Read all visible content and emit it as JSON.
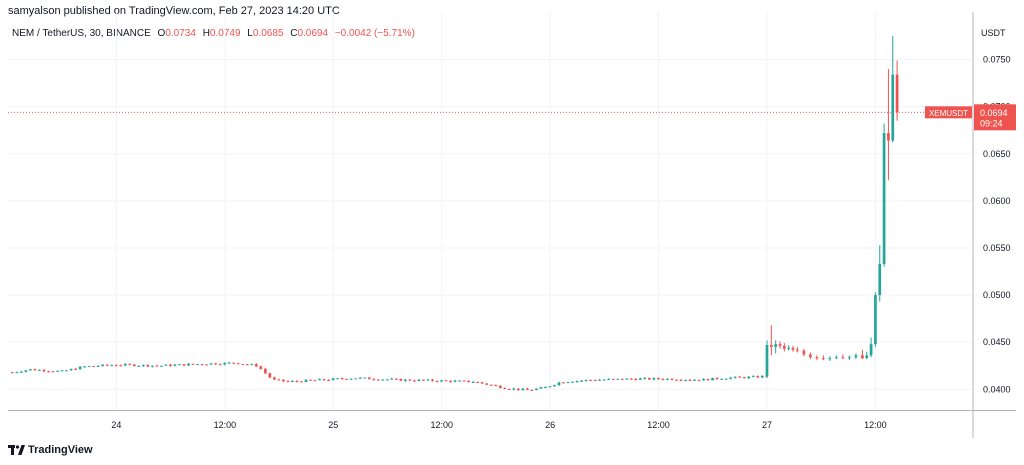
{
  "header": {
    "published_text": "samyalson published on TradingView.com, Feb 27, 2023 14:20 UTC"
  },
  "legend": {
    "symbol": "NEM / TetherUS, 30, BINANCE",
    "o_label": "O",
    "o_value": "0.0734",
    "h_label": "H",
    "h_value": "0.0749",
    "l_label": "L",
    "l_value": "0.0685",
    "c_label": "C",
    "c_value": "0.0694",
    "change": "−0.0042 (−5.71%)"
  },
  "price_axis": {
    "unit": "USDT"
  },
  "price_tag": {
    "symbol": "XEMUSDT",
    "price": "0.0694",
    "countdown": "09:24"
  },
  "footer": {
    "brand": "TradingView"
  },
  "colors": {
    "up": "#26a69a",
    "down": "#ef5350",
    "grid": "#f0f3fa",
    "axis_text": "#131722",
    "tag_bg": "#ef5350"
  },
  "chart_data": {
    "type": "candlestick",
    "title": "NEM / TetherUS, 30, BINANCE",
    "ylabel": "USDT",
    "ylim": [
      0.0378,
      0.0792
    ],
    "xlim": [
      23.5,
      27.95
    ],
    "grid": true,
    "x_ticks": [
      {
        "label": "24",
        "value": 24.0
      },
      {
        "label": "12:00",
        "value": 24.5
      },
      {
        "label": "25",
        "value": 25.0
      },
      {
        "label": "12:00",
        "value": 25.5
      },
      {
        "label": "26",
        "value": 26.0
      },
      {
        "label": "12:00",
        "value": 26.5
      },
      {
        "label": "27",
        "value": 27.0
      },
      {
        "label": "12:00",
        "value": 27.5
      }
    ],
    "y_ticks": [
      {
        "label": "0.0750",
        "value": 0.075
      },
      {
        "label": "0.0700",
        "value": 0.07
      },
      {
        "label": "0.0650",
        "value": 0.065
      },
      {
        "label": "0.0600",
        "value": 0.06
      },
      {
        "label": "0.0550",
        "value": 0.055
      },
      {
        "label": "0.0500",
        "value": 0.05
      },
      {
        "label": "0.0450",
        "value": 0.045
      },
      {
        "label": "0.0400",
        "value": 0.04
      }
    ],
    "last_price": 0.0694,
    "anchor_closes": [
      [
        23.52,
        0.0418
      ],
      [
        23.6,
        0.0421
      ],
      [
        23.75,
        0.0419
      ],
      [
        23.85,
        0.0424
      ],
      [
        24.0,
        0.0426
      ],
      [
        24.2,
        0.0425
      ],
      [
        24.4,
        0.0427
      ],
      [
        24.55,
        0.0428
      ],
      [
        24.65,
        0.0425
      ],
      [
        24.72,
        0.041
      ],
      [
        24.8,
        0.0408
      ],
      [
        24.95,
        0.041
      ],
      [
        25.1,
        0.0412
      ],
      [
        25.3,
        0.041
      ],
      [
        25.5,
        0.0409
      ],
      [
        25.65,
        0.0408
      ],
      [
        25.8,
        0.0401
      ],
      [
        25.9,
        0.0399
      ],
      [
        25.98,
        0.0402
      ],
      [
        26.05,
        0.0408
      ],
      [
        26.2,
        0.041
      ],
      [
        26.4,
        0.0411
      ],
      [
        26.55,
        0.0411
      ],
      [
        26.7,
        0.041
      ],
      [
        26.8,
        0.0412
      ],
      [
        26.95,
        0.0413
      ],
      [
        26.99,
        0.0414
      ]
    ],
    "candles": [
      {
        "t": 27.0,
        "o": 0.0414,
        "h": 0.0452,
        "l": 0.0412,
        "c": 0.0447
      },
      {
        "t": 27.02,
        "o": 0.0447,
        "h": 0.0468,
        "l": 0.0436,
        "c": 0.0445
      },
      {
        "t": 27.04,
        "o": 0.0445,
        "h": 0.0452,
        "l": 0.0438,
        "c": 0.0448
      },
      {
        "t": 27.06,
        "o": 0.0448,
        "h": 0.0451,
        "l": 0.0443,
        "c": 0.0446
      },
      {
        "t": 27.08,
        "o": 0.0446,
        "h": 0.0449,
        "l": 0.044,
        "c": 0.0443
      },
      {
        "t": 27.1,
        "o": 0.0443,
        "h": 0.0447,
        "l": 0.0441,
        "c": 0.0444
      },
      {
        "t": 27.12,
        "o": 0.0444,
        "h": 0.0446,
        "l": 0.044,
        "c": 0.0442
      },
      {
        "t": 27.14,
        "o": 0.0442,
        "h": 0.0445,
        "l": 0.0439,
        "c": 0.0441
      },
      {
        "t": 27.17,
        "o": 0.0441,
        "h": 0.0443,
        "l": 0.0435,
        "c": 0.0437
      },
      {
        "t": 27.2,
        "o": 0.0437,
        "h": 0.0439,
        "l": 0.0432,
        "c": 0.0434
      },
      {
        "t": 27.23,
        "o": 0.0434,
        "h": 0.0436,
        "l": 0.0431,
        "c": 0.0433
      },
      {
        "t": 27.26,
        "o": 0.0433,
        "h": 0.0436,
        "l": 0.0431,
        "c": 0.0432
      },
      {
        "t": 27.29,
        "o": 0.0432,
        "h": 0.0435,
        "l": 0.043,
        "c": 0.0433
      },
      {
        "t": 27.32,
        "o": 0.0433,
        "h": 0.0436,
        "l": 0.0432,
        "c": 0.0434
      },
      {
        "t": 27.35,
        "o": 0.0434,
        "h": 0.0437,
        "l": 0.0432,
        "c": 0.0433
      },
      {
        "t": 27.38,
        "o": 0.0433,
        "h": 0.0436,
        "l": 0.0431,
        "c": 0.0434
      },
      {
        "t": 27.41,
        "o": 0.0434,
        "h": 0.0438,
        "l": 0.0432,
        "c": 0.0436
      },
      {
        "t": 27.44,
        "o": 0.0436,
        "h": 0.0442,
        "l": 0.0432,
        "c": 0.0433
      },
      {
        "t": 27.46,
        "o": 0.0433,
        "h": 0.044,
        "l": 0.0432,
        "c": 0.0436
      },
      {
        "t": 27.48,
        "o": 0.0436,
        "h": 0.0455,
        "l": 0.0434,
        "c": 0.0448
      },
      {
        "t": 27.5,
        "o": 0.0448,
        "h": 0.0503,
        "l": 0.0445,
        "c": 0.05
      },
      {
        "t": 27.52,
        "o": 0.05,
        "h": 0.0553,
        "l": 0.0493,
        "c": 0.0533
      },
      {
        "t": 27.54,
        "o": 0.0533,
        "h": 0.0682,
        "l": 0.053,
        "c": 0.0672
      },
      {
        "t": 27.56,
        "o": 0.0672,
        "h": 0.074,
        "l": 0.0622,
        "c": 0.0664
      },
      {
        "t": 27.58,
        "o": 0.0664,
        "h": 0.0775,
        "l": 0.0662,
        "c": 0.0734
      },
      {
        "t": 27.6,
        "o": 0.0734,
        "h": 0.0749,
        "l": 0.0685,
        "c": 0.0694
      }
    ]
  }
}
